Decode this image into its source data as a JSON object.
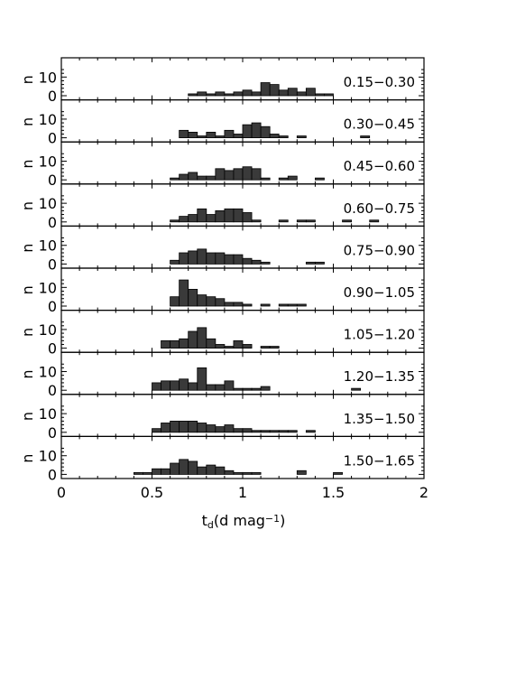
{
  "chart_data": {
    "type": "bar",
    "xlabel": "t_d(d mag^-1)",
    "xlabel_parts": {
      "main": "t",
      "sub": "d",
      "paren": "(d mag",
      "sup": "−1",
      "close": ")"
    },
    "ylabel": "n",
    "xlim": [
      0,
      2
    ],
    "ylim": [
      0,
      15
    ],
    "x_ticks": [
      0,
      0.5,
      1,
      1.5,
      2
    ],
    "x_tick_labels": [
      "0",
      "0.5",
      "1",
      "1.5",
      "2"
    ],
    "y_ticks": [
      0,
      10
    ],
    "y_tick_labels": [
      "0",
      "10"
    ],
    "bin_width": 0.05,
    "bar_color": "#3a3a3a",
    "panels": [
      {
        "label": "0.15−0.30",
        "bars": [
          [
            0.7,
            1
          ],
          [
            0.75,
            2
          ],
          [
            0.8,
            1
          ],
          [
            0.85,
            2
          ],
          [
            0.9,
            1
          ],
          [
            0.95,
            2
          ],
          [
            1.0,
            3
          ],
          [
            1.05,
            2
          ],
          [
            1.1,
            7
          ],
          [
            1.15,
            6
          ],
          [
            1.2,
            3
          ],
          [
            1.25,
            4
          ],
          [
            1.3,
            2
          ],
          [
            1.35,
            4
          ],
          [
            1.4,
            1
          ],
          [
            1.45,
            1
          ]
        ]
      },
      {
        "label": "0.30−0.45",
        "bars": [
          [
            0.65,
            4
          ],
          [
            0.7,
            3
          ],
          [
            0.75,
            1
          ],
          [
            0.8,
            3
          ],
          [
            0.85,
            1
          ],
          [
            0.9,
            4
          ],
          [
            0.95,
            2
          ],
          [
            1.0,
            7
          ],
          [
            1.05,
            8
          ],
          [
            1.1,
            6
          ],
          [
            1.15,
            2
          ],
          [
            1.2,
            1
          ],
          [
            1.3,
            1
          ],
          [
            1.65,
            1
          ]
        ]
      },
      {
        "label": "0.45−0.60",
        "bars": [
          [
            0.6,
            1
          ],
          [
            0.65,
            3
          ],
          [
            0.7,
            4
          ],
          [
            0.75,
            2
          ],
          [
            0.8,
            2
          ],
          [
            0.85,
            6
          ],
          [
            0.9,
            5
          ],
          [
            0.95,
            6
          ],
          [
            1.0,
            7
          ],
          [
            1.05,
            6
          ],
          [
            1.1,
            1
          ],
          [
            1.2,
            1
          ],
          [
            1.25,
            2
          ],
          [
            1.4,
            1
          ]
        ]
      },
      {
        "label": "0.60−0.75",
        "bars": [
          [
            0.6,
            1
          ],
          [
            0.65,
            3
          ],
          [
            0.7,
            4
          ],
          [
            0.75,
            7
          ],
          [
            0.8,
            4
          ],
          [
            0.85,
            6
          ],
          [
            0.9,
            7
          ],
          [
            0.95,
            7
          ],
          [
            1.0,
            5
          ],
          [
            1.05,
            1
          ],
          [
            1.2,
            1
          ],
          [
            1.3,
            1
          ],
          [
            1.35,
            1
          ],
          [
            1.55,
            1
          ],
          [
            1.7,
            1
          ]
        ]
      },
      {
        "label": "0.75−0.90",
        "bars": [
          [
            0.6,
            2
          ],
          [
            0.65,
            6
          ],
          [
            0.7,
            7
          ],
          [
            0.75,
            8
          ],
          [
            0.8,
            6
          ],
          [
            0.85,
            6
          ],
          [
            0.9,
            5
          ],
          [
            0.95,
            5
          ],
          [
            1.0,
            3
          ],
          [
            1.05,
            2
          ],
          [
            1.1,
            1
          ],
          [
            1.35,
            1
          ],
          [
            1.4,
            1
          ]
        ]
      },
      {
        "label": "0.90−1.05",
        "bars": [
          [
            0.6,
            5
          ],
          [
            0.65,
            14
          ],
          [
            0.7,
            9
          ],
          [
            0.75,
            6
          ],
          [
            0.8,
            5
          ],
          [
            0.85,
            4
          ],
          [
            0.9,
            2
          ],
          [
            0.95,
            2
          ],
          [
            1.0,
            1
          ],
          [
            1.1,
            1
          ],
          [
            1.2,
            1
          ],
          [
            1.25,
            1
          ],
          [
            1.3,
            1
          ]
        ]
      },
      {
        "label": "1.05−1.20",
        "bars": [
          [
            0.55,
            4
          ],
          [
            0.6,
            4
          ],
          [
            0.65,
            5
          ],
          [
            0.7,
            9
          ],
          [
            0.75,
            11
          ],
          [
            0.8,
            5
          ],
          [
            0.85,
            2
          ],
          [
            0.9,
            1
          ],
          [
            0.95,
            4
          ],
          [
            1.0,
            2
          ],
          [
            1.1,
            1
          ],
          [
            1.15,
            1
          ]
        ]
      },
      {
        "label": "1.20−1.35",
        "bars": [
          [
            0.5,
            4
          ],
          [
            0.55,
            5
          ],
          [
            0.6,
            5
          ],
          [
            0.65,
            6
          ],
          [
            0.7,
            4
          ],
          [
            0.75,
            12
          ],
          [
            0.8,
            3
          ],
          [
            0.85,
            3
          ],
          [
            0.9,
            5
          ],
          [
            0.95,
            1
          ],
          [
            1.0,
            1
          ],
          [
            1.05,
            1
          ],
          [
            1.1,
            2
          ],
          [
            1.6,
            1
          ]
        ]
      },
      {
        "label": "1.35−1.50",
        "bars": [
          [
            0.5,
            2
          ],
          [
            0.55,
            5
          ],
          [
            0.6,
            6
          ],
          [
            0.65,
            6
          ],
          [
            0.7,
            6
          ],
          [
            0.75,
            5
          ],
          [
            0.8,
            4
          ],
          [
            0.85,
            3
          ],
          [
            0.9,
            4
          ],
          [
            0.95,
            2
          ],
          [
            1.0,
            2
          ],
          [
            1.05,
            1
          ],
          [
            1.1,
            1
          ],
          [
            1.15,
            1
          ],
          [
            1.2,
            1
          ],
          [
            1.25,
            1
          ],
          [
            1.35,
            1
          ]
        ]
      },
      {
        "label": "1.50−1.65",
        "bars": [
          [
            0.4,
            1
          ],
          [
            0.45,
            1
          ],
          [
            0.5,
            3
          ],
          [
            0.55,
            3
          ],
          [
            0.6,
            6
          ],
          [
            0.65,
            8
          ],
          [
            0.7,
            7
          ],
          [
            0.75,
            4
          ],
          [
            0.8,
            5
          ],
          [
            0.85,
            4
          ],
          [
            0.9,
            2
          ],
          [
            0.95,
            1
          ],
          [
            1.0,
            1
          ],
          [
            1.05,
            1
          ],
          [
            1.3,
            2
          ],
          [
            1.5,
            1
          ]
        ]
      }
    ]
  }
}
